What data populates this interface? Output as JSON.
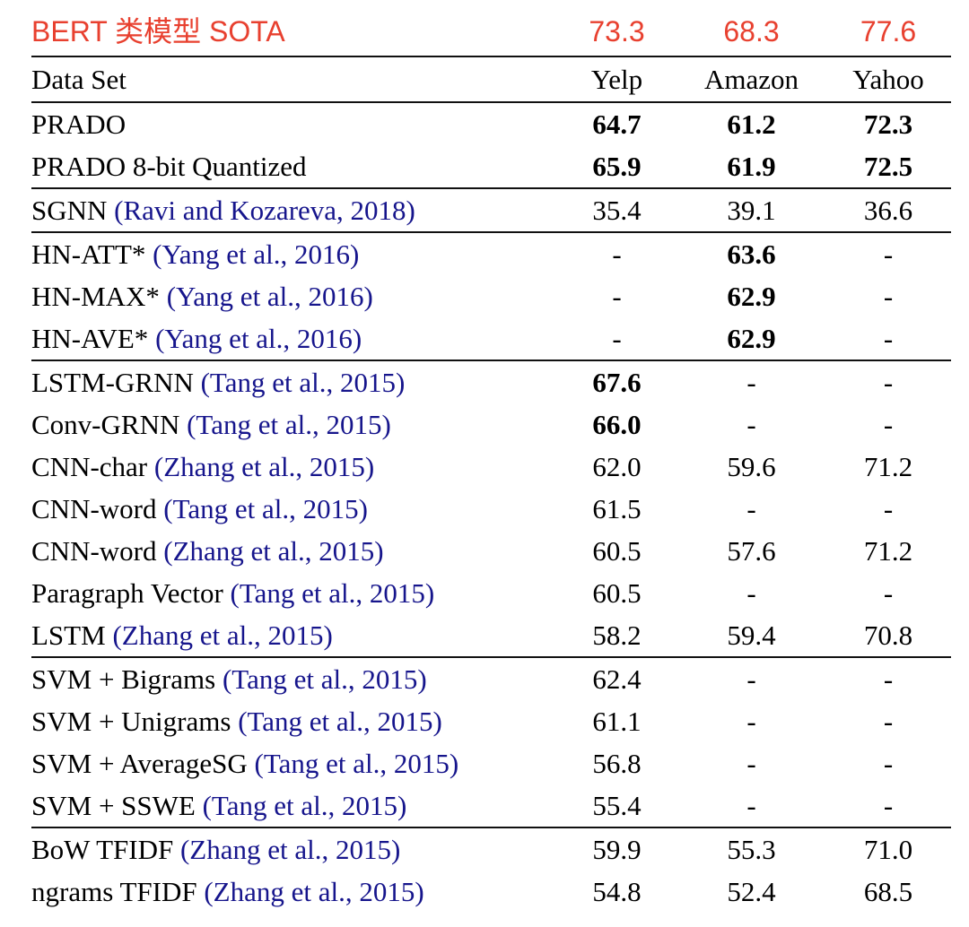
{
  "colors": {
    "accent-red": "#e8402f",
    "link-blue": "#16158c"
  },
  "bert_row": {
    "label": "BERT 类模型 SOTA",
    "values": [
      "73.3",
      "68.3",
      "77.6"
    ]
  },
  "header": {
    "dataset": "Data Set",
    "columns": [
      "Yelp",
      "Amazon",
      "Yahoo"
    ]
  },
  "groups": [
    {
      "rows": [
        {
          "name": "PRADO",
          "cite": "",
          "values": [
            "64.7",
            "61.2",
            "72.3"
          ],
          "bold": [
            true,
            true,
            true
          ]
        },
        {
          "name": "PRADO 8-bit Quantized",
          "cite": "",
          "values": [
            "65.9",
            "61.9",
            "72.5"
          ],
          "bold": [
            true,
            true,
            true
          ]
        }
      ]
    },
    {
      "rows": [
        {
          "name": "SGNN",
          "cite": "(Ravi and Kozareva, 2018)",
          "values": [
            "35.4",
            "39.1",
            "36.6"
          ],
          "bold": [
            false,
            false,
            false
          ]
        }
      ]
    },
    {
      "rows": [
        {
          "name": "HN-ATT*",
          "cite": "(Yang et al., 2016)",
          "values": [
            "-",
            "63.6",
            "-"
          ],
          "bold": [
            false,
            true,
            false
          ]
        },
        {
          "name": "HN-MAX*",
          "cite": "(Yang et al., 2016)",
          "values": [
            "-",
            "62.9",
            "-"
          ],
          "bold": [
            false,
            true,
            false
          ]
        },
        {
          "name": "HN-AVE*",
          "cite": "(Yang et al., 2016)",
          "values": [
            "-",
            "62.9",
            "-"
          ],
          "bold": [
            false,
            true,
            false
          ]
        }
      ]
    },
    {
      "rows": [
        {
          "name": "LSTM-GRNN",
          "cite": "(Tang et al., 2015)",
          "values": [
            "67.6",
            "-",
            "-"
          ],
          "bold": [
            true,
            false,
            false
          ]
        },
        {
          "name": "Conv-GRNN",
          "cite": "(Tang et al., 2015)",
          "values": [
            "66.0",
            "-",
            "-"
          ],
          "bold": [
            true,
            false,
            false
          ]
        },
        {
          "name": "CNN-char",
          "cite": "(Zhang et al., 2015)",
          "values": [
            "62.0",
            "59.6",
            "71.2"
          ],
          "bold": [
            false,
            false,
            false
          ]
        },
        {
          "name": "CNN-word",
          "cite": "(Tang et al., 2015)",
          "values": [
            "61.5",
            "-",
            "-"
          ],
          "bold": [
            false,
            false,
            false
          ]
        },
        {
          "name": "CNN-word",
          "cite": "(Zhang et al., 2015)",
          "values": [
            "60.5",
            "57.6",
            "71.2"
          ],
          "bold": [
            false,
            false,
            false
          ]
        },
        {
          "name": "Paragraph Vector",
          "cite": "(Tang et al., 2015)",
          "values": [
            "60.5",
            "-",
            "-"
          ],
          "bold": [
            false,
            false,
            false
          ]
        },
        {
          "name": "LSTM",
          "cite": "(Zhang et al., 2015)",
          "values": [
            "58.2",
            "59.4",
            "70.8"
          ],
          "bold": [
            false,
            false,
            false
          ]
        }
      ]
    },
    {
      "rows": [
        {
          "name": "SVM + Bigrams",
          "cite": "(Tang et al., 2015)",
          "values": [
            "62.4",
            "-",
            "-"
          ],
          "bold": [
            false,
            false,
            false
          ]
        },
        {
          "name": "SVM + Unigrams",
          "cite": "(Tang et al., 2015)",
          "values": [
            "61.1",
            "-",
            "-"
          ],
          "bold": [
            false,
            false,
            false
          ]
        },
        {
          "name": "SVM + AverageSG",
          "cite": "(Tang et al., 2015)",
          "values": [
            "56.8",
            "-",
            "-"
          ],
          "bold": [
            false,
            false,
            false
          ]
        },
        {
          "name": "SVM + SSWE",
          "cite": "(Tang et al., 2015)",
          "values": [
            "55.4",
            "-",
            "-"
          ],
          "bold": [
            false,
            false,
            false
          ]
        }
      ]
    },
    {
      "rows": [
        {
          "name": "BoW TFIDF",
          "cite": "(Zhang et al., 2015)",
          "values": [
            "59.9",
            "55.3",
            "71.0"
          ],
          "bold": [
            false,
            false,
            false
          ]
        },
        {
          "name": "ngrams TFIDF",
          "cite": "(Zhang et al., 2015)",
          "values": [
            "54.8",
            "52.4",
            "68.5"
          ],
          "bold": [
            false,
            false,
            false
          ]
        }
      ]
    }
  ]
}
